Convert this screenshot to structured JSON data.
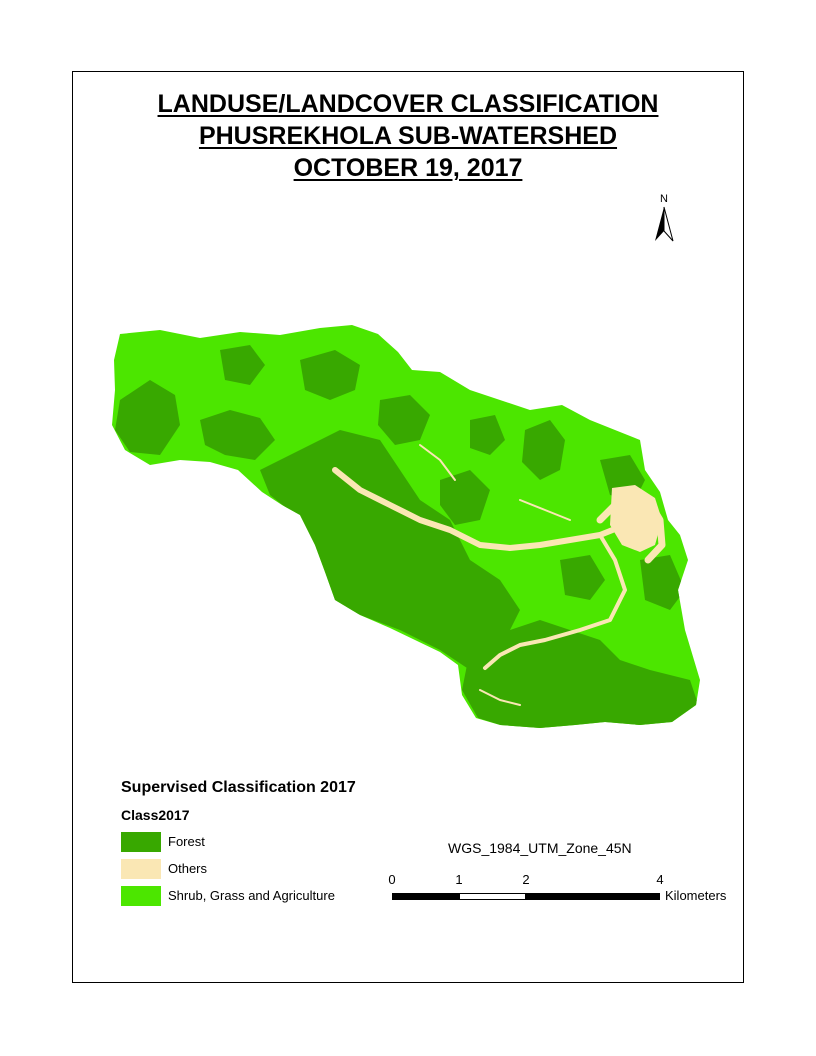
{
  "title": {
    "line1": "LANDUSE/LANDCOVER CLASSIFICATION",
    "line2": "PHUSREKHOLA SUB-WATERSHED",
    "line3": "OCTOBER 19, 2017"
  },
  "north_arrow": {
    "label": "N"
  },
  "legend": {
    "title": "Supervised Classification 2017",
    "subtitle": "Class2017",
    "items": [
      {
        "label": "Forest",
        "color": "#38a800"
      },
      {
        "label": "Others",
        "color": "#fae7b4"
      },
      {
        "label": "Shrub, Grass and Agriculture",
        "color": "#4ce600"
      }
    ]
  },
  "projection": "WGS_1984_UTM_Zone_45N",
  "scale_bar": {
    "ticks": [
      "0",
      "1",
      "2",
      "4"
    ],
    "units": "Kilometers"
  },
  "map_colors": {
    "forest": "#38a800",
    "others": "#fae7b4",
    "shrub": "#4ce600"
  }
}
